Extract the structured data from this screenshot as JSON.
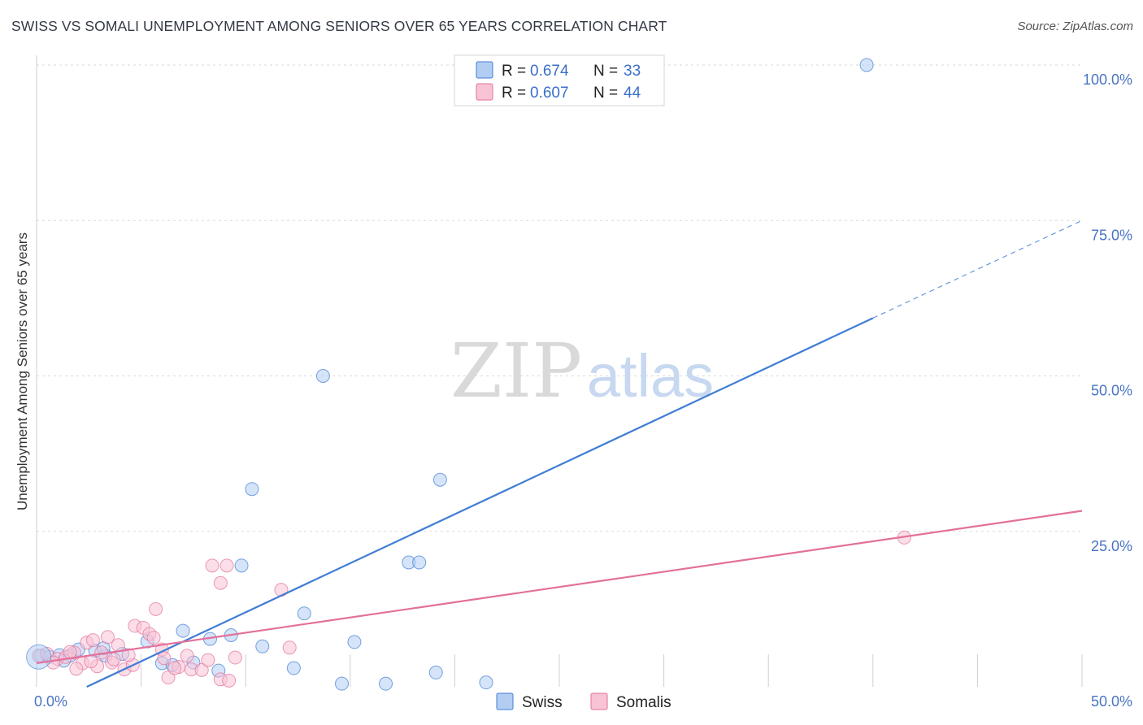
{
  "chart_data": {
    "type": "scatter",
    "title": "SWISS VS SOMALI UNEMPLOYMENT AMONG SENIORS OVER 65 YEARS CORRELATION CHART",
    "source": "Source: ZipAtlas.com",
    "watermark": {
      "zip": "ZIP",
      "atlas": "atlas"
    },
    "xlabel": "",
    "ylabel": "Unemployment Among Seniors over 65 years",
    "xlim": [
      0,
      50
    ],
    "ylim": [
      0,
      100
    ],
    "x_ticks": [
      0,
      50
    ],
    "x_tick_labels": [
      "0.0%",
      "50.0%"
    ],
    "y_ticks": [
      25,
      50,
      75,
      100
    ],
    "y_tick_labels": [
      "25.0%",
      "50.0%",
      "75.0%",
      "100.0%"
    ],
    "grid": true,
    "legend": {
      "position": "top-center",
      "r_label": "R =",
      "n_label": "N =",
      "entries": [
        {
          "series": "Swiss",
          "r": "0.674",
          "n": "33"
        },
        {
          "series": "Somalis",
          "r": "0.607",
          "n": "44"
        }
      ]
    },
    "series": [
      {
        "name": "Swiss",
        "color": "#3f7dd4",
        "fill": "#b3cdf2",
        "trend": {
          "x0": 2.4,
          "y0": 0,
          "x1": 40,
          "y1": 59.3,
          "dash_x1": 50,
          "dash_y1": 75
        },
        "points": [
          [
            0.2,
            5.0
          ],
          [
            0.6,
            4.8
          ],
          [
            1.1,
            5.1
          ],
          [
            1.6,
            5.0
          ],
          [
            2.0,
            6.0
          ],
          [
            2.8,
            5.8
          ],
          [
            3.3,
            5.0
          ],
          [
            4.1,
            5.3
          ],
          [
            5.3,
            7.3
          ],
          [
            6.0,
            3.8
          ],
          [
            6.5,
            3.5
          ],
          [
            7.0,
            9.0
          ],
          [
            7.5,
            3.9
          ],
          [
            8.3,
            7.7
          ],
          [
            8.7,
            2.6
          ],
          [
            9.3,
            8.3
          ],
          [
            9.8,
            19.5
          ],
          [
            10.3,
            31.8
          ],
          [
            10.8,
            6.5
          ],
          [
            12.3,
            3.0
          ],
          [
            12.8,
            11.8
          ],
          [
            13.7,
            50.0
          ],
          [
            14.6,
            0.5
          ],
          [
            15.2,
            7.2
          ],
          [
            16.7,
            0.5
          ],
          [
            17.8,
            20.0
          ],
          [
            18.3,
            20.0
          ],
          [
            19.1,
            2.3
          ],
          [
            19.3,
            33.3
          ],
          [
            21.5,
            0.7
          ],
          [
            39.7,
            100.0
          ],
          [
            3.2,
            6.2
          ],
          [
            1.3,
            4.2
          ]
        ]
      },
      {
        "name": "Somalis",
        "color": "#e3709a",
        "fill": "#f8c3d5",
        "trend": {
          "x0": 0,
          "y0": 3.8,
          "x1": 50,
          "y1": 28.3
        },
        "points": [
          [
            0.1,
            5.0
          ],
          [
            0.5,
            5.3
          ],
          [
            1.0,
            4.5
          ],
          [
            1.4,
            4.8
          ],
          [
            1.8,
            5.5
          ],
          [
            2.2,
            3.8
          ],
          [
            2.4,
            7.1
          ],
          [
            2.7,
            7.5
          ],
          [
            3.1,
            5.5
          ],
          [
            3.6,
            3.9
          ],
          [
            3.9,
            6.7
          ],
          [
            4.2,
            2.8
          ],
          [
            4.7,
            9.8
          ],
          [
            5.1,
            9.5
          ],
          [
            5.4,
            8.5
          ],
          [
            5.7,
            12.5
          ],
          [
            6.0,
            6.0
          ],
          [
            6.3,
            1.5
          ],
          [
            6.8,
            3.2
          ],
          [
            7.4,
            2.8
          ],
          [
            7.9,
            2.7
          ],
          [
            8.2,
            4.3
          ],
          [
            8.8,
            1.2
          ],
          [
            9.2,
            1.0
          ],
          [
            9.5,
            4.7
          ],
          [
            8.4,
            19.5
          ],
          [
            8.8,
            16.7
          ],
          [
            9.1,
            19.5
          ],
          [
            11.7,
            15.6
          ],
          [
            12.1,
            6.3
          ],
          [
            41.5,
            24.0
          ],
          [
            2.9,
            3.3
          ],
          [
            3.4,
            8.0
          ],
          [
            4.6,
            3.5
          ],
          [
            5.6,
            7.9
          ],
          [
            6.6,
            3.0
          ],
          [
            7.2,
            5.0
          ],
          [
            1.9,
            2.9
          ],
          [
            2.6,
            4.1
          ],
          [
            0.8,
            3.9
          ],
          [
            1.6,
            5.6
          ],
          [
            4.4,
            5.1
          ],
          [
            6.1,
            4.6
          ],
          [
            3.7,
            4.4
          ]
        ]
      }
    ]
  }
}
